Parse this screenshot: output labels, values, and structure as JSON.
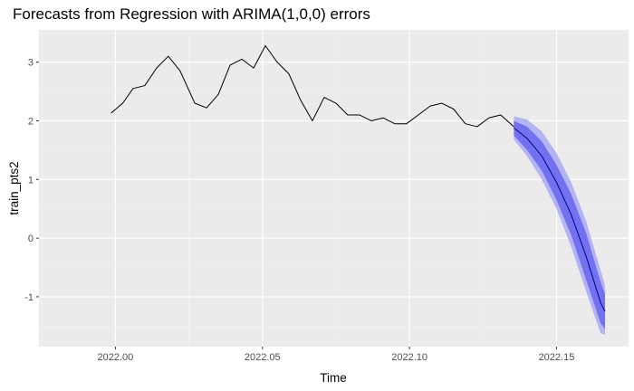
{
  "chart_data": {
    "type": "line",
    "title": "Forecasts from Regression with ARIMA(1,0,0) errors",
    "xlabel": "Time",
    "ylabel": "train_pts2",
    "xlim": [
      1919.974,
      1920.1745
    ],
    "ylim": [
      -1.85,
      3.55
    ],
    "x_ticks": [
      1920.0,
      1920.05,
      1920.1,
      1920.15
    ],
    "x_tick_labels": [
      "2022.00",
      "2022.05",
      "2022.10",
      "2022.15"
    ],
    "y_ticks": [
      -1,
      0,
      1,
      2,
      3
    ],
    "y_tick_labels": [
      "-1",
      "0",
      "1",
      "2",
      "3"
    ],
    "grid": true,
    "series": [
      {
        "x": [
          1919.9985,
          1920.0025,
          1920.006,
          1920.01,
          1920.014,
          1920.018,
          1920.022,
          1920.027,
          1920.031,
          1920.035,
          1920.039,
          1920.043,
          1920.047,
          1920.051,
          1920.055,
          1920.059,
          1920.063,
          1920.067,
          1920.071,
          1920.075,
          1920.079,
          1920.083,
          1920.087,
          1920.091,
          1920.095,
          1920.099,
          1920.103,
          1920.107,
          1920.111,
          1920.115,
          1920.119,
          1920.123,
          1920.127,
          1920.131,
          1920.1355
        ],
        "values": [
          2.13,
          2.3,
          2.55,
          2.6,
          2.9,
          3.1,
          2.85,
          2.3,
          2.22,
          2.45,
          2.95,
          3.05,
          2.9,
          3.28,
          3.0,
          2.8,
          2.35,
          2.0,
          2.4,
          2.3,
          2.1,
          2.1,
          2.0,
          2.05,
          1.95,
          1.95,
          2.1,
          2.25,
          2.3,
          2.2,
          1.95,
          1.9,
          2.05,
          2.1,
          1.9
        ]
      }
    ],
    "forecast": {
      "x": [
        1920.1355,
        1920.14,
        1920.145,
        1920.15,
        1920.155,
        1920.16,
        1920.165,
        1920.1665
      ],
      "mean": [
        1.88,
        1.7,
        1.4,
        0.95,
        0.4,
        -0.3,
        -1.1,
        -1.25
      ],
      "lower80": [
        1.75,
        1.5,
        1.15,
        0.65,
        0.05,
        -0.7,
        -1.45,
        -1.55
      ],
      "upper80": [
        2.0,
        1.9,
        1.65,
        1.25,
        0.75,
        0.1,
        -0.75,
        -0.95
      ],
      "lower95": [
        1.68,
        1.4,
        1.0,
        0.5,
        -0.15,
        -0.9,
        -1.62,
        -1.65
      ],
      "upper95": [
        2.08,
        2.02,
        1.82,
        1.45,
        0.95,
        0.3,
        -0.55,
        -0.8
      ]
    },
    "colors": {
      "panel": "#ebebeb",
      "grid_major": "#ffffff",
      "grid_minor": "#f4f4f4",
      "series": "#000000",
      "forecast_mean": "#00008b",
      "band80": "#7272f0",
      "band95": "#b4b4f4"
    }
  }
}
